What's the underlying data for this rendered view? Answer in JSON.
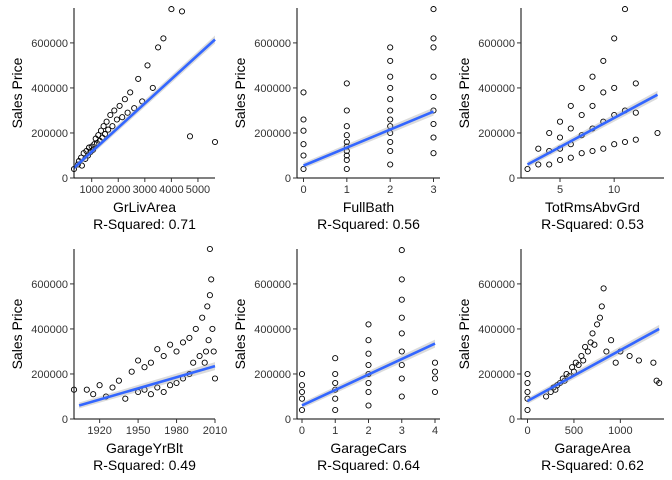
{
  "y_title": "Sales Price",
  "chart_data": [
    {
      "type": "scatter",
      "xlabel": "GrLivArea",
      "subtitle": "R-Squared: 0.71",
      "ylabel": "Sales Price",
      "xlim": [
        334,
        5642
      ],
      "ylim": [
        0,
        755000
      ],
      "xticks": [
        1000,
        2000,
        3000,
        4000,
        5000
      ],
      "yticks": [
        0,
        200000,
        400000,
        600000
      ],
      "fit": {
        "x": [
          334,
          5642
        ],
        "y": [
          45000,
          615000
        ]
      },
      "points": {
        "x": [
          334,
          480,
          520,
          600,
          630,
          700,
          760,
          800,
          860,
          900,
          950,
          1000,
          1050,
          1100,
          1150,
          1200,
          1250,
          1300,
          1350,
          1400,
          1450,
          1500,
          1560,
          1620,
          1700,
          1780,
          1850,
          1950,
          2050,
          2150,
          2250,
          2350,
          2450,
          2600,
          2750,
          2900,
          3100,
          3300,
          3500,
          3700,
          4000,
          4400,
          4700,
          5642
        ],
        "y": [
          40000,
          60000,
          75000,
          90000,
          55000,
          110000,
          85000,
          120000,
          100000,
          135000,
          115000,
          140000,
          125000,
          150000,
          175000,
          155000,
          190000,
          165000,
          210000,
          180000,
          230000,
          195000,
          250000,
          215000,
          280000,
          230000,
          300000,
          260000,
          320000,
          270000,
          350000,
          290000,
          380000,
          310000,
          440000,
          340000,
          500000,
          400000,
          580000,
          620000,
          750000,
          740000,
          185000,
          160000
        ]
      }
    },
    {
      "type": "scatter",
      "xlabel": "FullBath",
      "subtitle": "R-Squared: 0.56",
      "ylabel": "Sales Price",
      "xlim": [
        -0.15,
        3.15
      ],
      "ylim": [
        0,
        755000
      ],
      "xticks": [
        0,
        1,
        2,
        3
      ],
      "yticks": [
        0,
        200000,
        400000,
        600000
      ],
      "fit": {
        "x": [
          0,
          3
        ],
        "y": [
          55000,
          295000
        ]
      },
      "points": {
        "x": [
          0,
          0,
          0,
          0,
          0,
          0,
          1,
          1,
          1,
          1,
          1,
          1,
          1,
          1,
          1,
          1,
          2,
          2,
          2,
          2,
          2,
          2,
          2,
          2,
          2,
          2,
          2,
          2,
          3,
          3,
          3,
          3,
          3,
          3,
          3,
          3,
          3
        ],
        "y": [
          40000,
          100000,
          150000,
          210000,
          260000,
          380000,
          40000,
          80000,
          100000,
          120000,
          140000,
          160000,
          190000,
          230000,
          300000,
          420000,
          60000,
          120000,
          160000,
          200000,
          230000,
          260000,
          300000,
          350000,
          400000,
          450000,
          520000,
          580000,
          110000,
          180000,
          240000,
          300000,
          360000,
          450000,
          580000,
          620000,
          750000
        ]
      }
    },
    {
      "type": "scatter",
      "xlabel": "TotRmsAbvGrd",
      "subtitle": "R-Squared: 0.53",
      "ylabel": "Sales Price",
      "xlim": [
        1.4,
        14.6
      ],
      "ylim": [
        0,
        755000
      ],
      "xticks": [
        5,
        10
      ],
      "yticks": [
        0,
        200000,
        400000,
        600000
      ],
      "fit": {
        "x": [
          2,
          14
        ],
        "y": [
          60000,
          370000
        ]
      },
      "points": {
        "x": [
          2,
          3,
          3,
          4,
          4,
          4,
          5,
          5,
          5,
          5,
          6,
          6,
          6,
          6,
          7,
          7,
          7,
          7,
          8,
          8,
          8,
          8,
          9,
          9,
          9,
          9,
          10,
          10,
          10,
          10,
          11,
          11,
          11,
          12,
          12,
          12,
          14
        ],
        "y": [
          40000,
          60000,
          130000,
          60000,
          120000,
          200000,
          80000,
          130000,
          180000,
          250000,
          90000,
          150000,
          220000,
          320000,
          110000,
          190000,
          280000,
          400000,
          120000,
          220000,
          320000,
          450000,
          130000,
          250000,
          380000,
          520000,
          150000,
          280000,
          400000,
          620000,
          160000,
          300000,
          750000,
          170000,
          290000,
          420000,
          200000
        ]
      }
    },
    {
      "type": "scatter",
      "xlabel": "GarageYrBlt",
      "subtitle": "R-Squared: 0.49",
      "ylabel": "Sales Price",
      "xlim": [
        1900,
        2010
      ],
      "ylim": [
        0,
        755000
      ],
      "xticks": [
        1920,
        1950,
        1980,
        2010
      ],
      "yticks": [
        0,
        200000,
        400000,
        600000
      ],
      "fit": {
        "x": [
          1904,
          2010
        ],
        "y": [
          60000,
          235000
        ]
      },
      "points": {
        "x": [
          1900,
          1910,
          1915,
          1920,
          1925,
          1930,
          1935,
          1940,
          1945,
          1950,
          1950,
          1955,
          1955,
          1960,
          1960,
          1965,
          1965,
          1970,
          1970,
          1975,
          1975,
          1980,
          1980,
          1985,
          1985,
          1990,
          1990,
          1993,
          1995,
          1998,
          2000,
          2002,
          2003,
          2004,
          2005,
          2006,
          2006,
          2007,
          2008,
          2009,
          2010
        ],
        "y": [
          130000,
          130000,
          110000,
          150000,
          100000,
          140000,
          170000,
          90000,
          210000,
          120000,
          260000,
          130000,
          230000,
          110000,
          250000,
          140000,
          310000,
          120000,
          280000,
          150000,
          330000,
          160000,
          300000,
          180000,
          340000,
          200000,
          360000,
          250000,
          400000,
          280000,
          450000,
          250000,
          300000,
          500000,
          350000,
          550000,
          755000,
          620000,
          400000,
          300000,
          180000
        ]
      }
    },
    {
      "type": "scatter",
      "xlabel": "GarageCars",
      "subtitle": "R-Squared: 0.64",
      "ylabel": "Sales Price",
      "xlim": [
        -0.15,
        4.15
      ],
      "ylim": [
        0,
        755000
      ],
      "xticks": [
        0,
        1,
        2,
        3,
        4
      ],
      "yticks": [
        0,
        200000,
        400000,
        600000
      ],
      "fit": {
        "x": [
          0,
          4
        ],
        "y": [
          60000,
          335000
        ]
      },
      "points": {
        "x": [
          0,
          0,
          0,
          0,
          0,
          1,
          1,
          1,
          1,
          1,
          1,
          2,
          2,
          2,
          2,
          2,
          2,
          2,
          2,
          3,
          3,
          3,
          3,
          3,
          3,
          3,
          3,
          3,
          4,
          4,
          4,
          4
        ],
        "y": [
          40000,
          90000,
          120000,
          150000,
          200000,
          40000,
          90000,
          130000,
          160000,
          200000,
          270000,
          60000,
          120000,
          160000,
          200000,
          240000,
          290000,
          350000,
          420000,
          100000,
          180000,
          240000,
          300000,
          380000,
          450000,
          530000,
          620000,
          750000,
          120000,
          180000,
          210000,
          250000
        ]
      }
    },
    {
      "type": "scatter",
      "xlabel": "GarageArea",
      "subtitle": "R-Squared: 0.62",
      "ylabel": "Sales Price",
      "xlim": [
        -70,
        1470
      ],
      "ylim": [
        0,
        755000
      ],
      "xticks": [
        0,
        500,
        1000
      ],
      "yticks": [
        0,
        200000,
        400000,
        600000
      ],
      "fit": {
        "x": [
          0,
          1418
        ],
        "y": [
          80000,
          400000
        ]
      },
      "points": {
        "x": [
          0,
          0,
          0,
          0,
          0,
          200,
          250,
          280,
          300,
          320,
          350,
          380,
          400,
          420,
          450,
          480,
          500,
          520,
          550,
          580,
          600,
          620,
          650,
          680,
          700,
          720,
          750,
          780,
          800,
          820,
          850,
          900,
          950,
          1000,
          1100,
          1200,
          1356,
          1390,
          1418
        ],
        "y": [
          40000,
          90000,
          120000,
          160000,
          200000,
          100000,
          120000,
          140000,
          130000,
          150000,
          160000,
          180000,
          170000,
          200000,
          190000,
          230000,
          210000,
          250000,
          240000,
          280000,
          260000,
          320000,
          300000,
          340000,
          380000,
          330000,
          420000,
          450000,
          500000,
          580000,
          300000,
          350000,
          250000,
          300000,
          280000,
          260000,
          250000,
          170000,
          160000
        ]
      }
    }
  ]
}
